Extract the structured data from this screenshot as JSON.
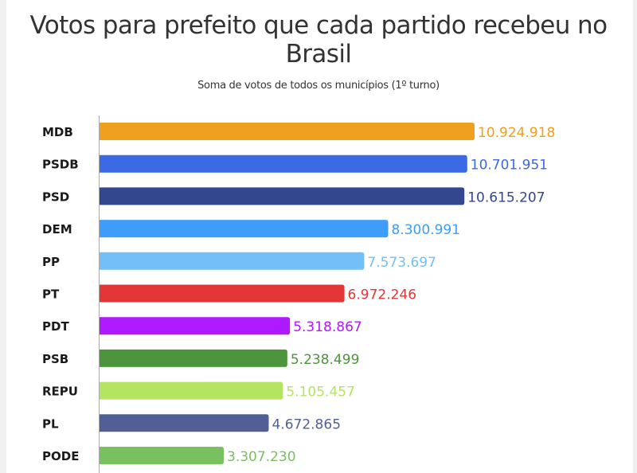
{
  "chart_data": {
    "type": "bar",
    "orientation": "horizontal",
    "title": "Votos para prefeito que cada partido recebeu no Brasil",
    "subtitle": "Soma de votos de todos os municípios (1º turno)",
    "xlabel": "",
    "ylabel": "",
    "grid": false,
    "legend": "none",
    "categories": [
      "MDB",
      "PSDB",
      "PSD",
      "DEM",
      "PP",
      "PT",
      "PDT",
      "PSB",
      "REPU",
      "PL",
      "PODE"
    ],
    "values": [
      10924918,
      10701951,
      10615207,
      8300991,
      7573697,
      6972246,
      5318867,
      5238499,
      5105457,
      4672865,
      3307230
    ],
    "value_labels": [
      "10.924.918",
      "10.701.951",
      "10.615.207",
      "8.300.991",
      "7.573.697",
      "6.972.246",
      "5.318.867",
      "5.238.499",
      "5.105.457",
      "4.672.865",
      "3.307.230"
    ],
    "colors": [
      "#EFA01E",
      "#3B69E3",
      "#33478F",
      "#3F9CF8",
      "#73BFF7",
      "#E23536",
      "#AE19FE",
      "#4C953C",
      "#B5E463",
      "#525F95",
      "#79C05F"
    ]
  }
}
